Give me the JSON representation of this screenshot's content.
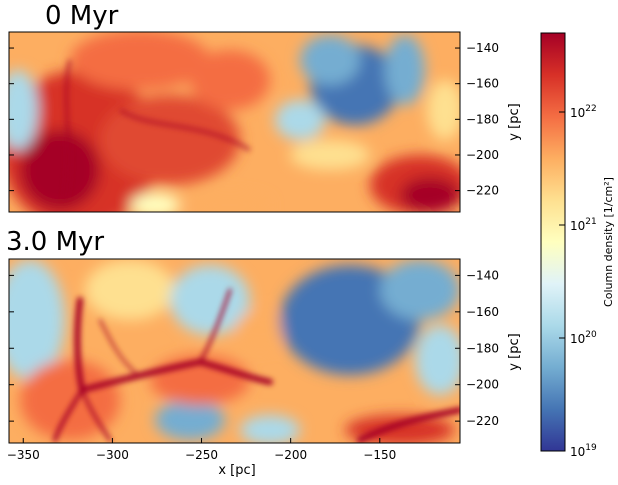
{
  "chart_data": {
    "type": "heatmap",
    "panels": [
      {
        "title": "0 Myr",
        "xlim": [
          -358,
          -105
        ],
        "ylim": [
          -232,
          -131
        ],
        "yticks": [
          -140,
          -160,
          -180,
          -200,
          -220
        ],
        "ylabel": "y [pc]"
      },
      {
        "title": "3.0 Myr",
        "xlim": [
          -358,
          -105
        ],
        "ylim": [
          -232,
          -131
        ],
        "yticks": [
          -140,
          -160,
          -180,
          -200,
          -220
        ],
        "ylabel": "y [pc]",
        "xticks": [
          -350,
          -300,
          -250,
          -200,
          -150
        ],
        "xlabel": "x [pc]"
      }
    ],
    "colorbar": {
      "label": "Column density [1/cm²]",
      "scale": "log",
      "range": [
        1e+19,
        5e+22
      ],
      "ticks": [
        {
          "value": 1e+19,
          "base": "10",
          "exp": "19"
        },
        {
          "value": 1e+20,
          "base": "10",
          "exp": "20"
        },
        {
          "value": 1e+21,
          "base": "10",
          "exp": "21"
        },
        {
          "value": 1e+22,
          "base": "10",
          "exp": "22"
        }
      ],
      "colormap": [
        "#313695",
        "#4575b4",
        "#74add1",
        "#abd9e9",
        "#e0f3f8",
        "#ffffbf",
        "#fee090",
        "#fdae61",
        "#f46d43",
        "#d73027",
        "#a50026"
      ]
    }
  }
}
